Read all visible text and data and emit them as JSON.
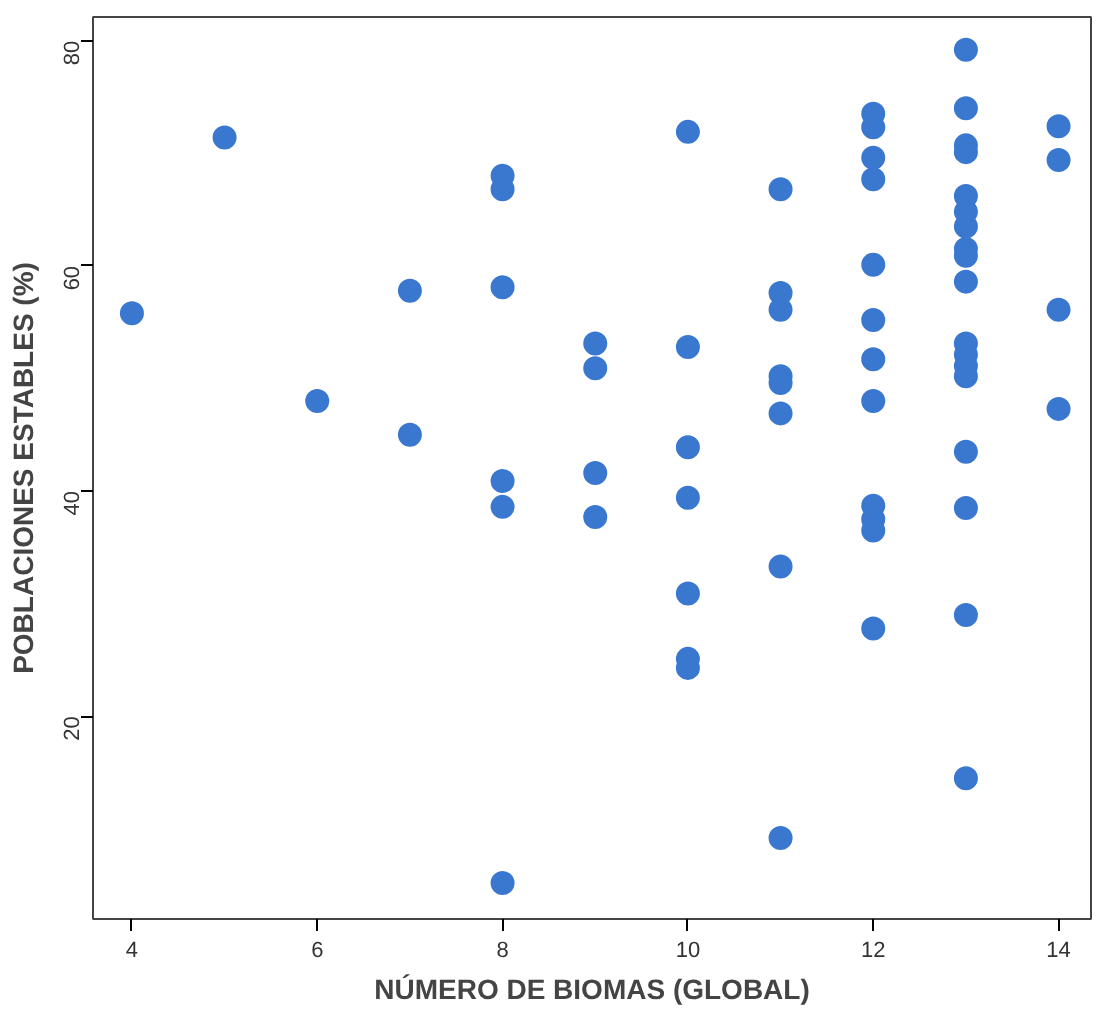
{
  "chart_data": {
    "type": "scatter",
    "xlabel": "NÚMERO DE BIOMAS (GLOBAL)",
    "ylabel": "POBLACIONES ESTABLES (%)",
    "x": [
      4,
      5,
      6,
      7,
      7,
      8,
      8,
      8,
      8,
      8,
      8,
      9,
      9,
      9,
      9,
      10,
      10,
      10,
      10,
      10,
      10,
      10,
      11,
      11,
      11,
      11,
      11,
      11,
      11,
      11,
      12,
      12,
      12,
      12,
      12,
      12,
      12,
      12,
      12,
      12,
      12,
      12,
      13,
      13,
      13,
      13,
      13,
      13,
      13,
      13,
      13,
      13,
      13,
      13,
      13,
      13,
      13,
      13,
      13,
      13,
      14,
      14,
      14,
      14
    ],
    "series": [
      {
        "color": "#3a78d0",
        "values": [
          55.8,
          71.4,
          48.0,
          57.8,
          45.0,
          68.0,
          66.8,
          58.1,
          40.9,
          38.6,
          5.2,
          53.1,
          50.9,
          41.6,
          37.7,
          71.9,
          52.8,
          43.9,
          39.4,
          30.9,
          25.1,
          24.3,
          66.8,
          57.6,
          56.1,
          50.2,
          49.6,
          46.9,
          33.3,
          9.2,
          73.5,
          72.3,
          69.6,
          67.7,
          60.1,
          55.2,
          51.7,
          48.0,
          38.7,
          37.5,
          36.5,
          27.8,
          79.2,
          74.0,
          70.7,
          70.1,
          66.2,
          64.8,
          63.5,
          61.5,
          60.9,
          58.6,
          53.1,
          52.1,
          51.1,
          50.2,
          43.5,
          38.5,
          29.0,
          14.5,
          72.4,
          69.4,
          56.1,
          47.3
        ]
      }
    ],
    "xlim": [
      3.58,
      14.35
    ],
    "ylim": [
      2.0,
      82.1
    ],
    "xticks": [
      4,
      6,
      8,
      10,
      12,
      14
    ],
    "yticks": [
      20,
      40,
      60,
      80
    ],
    "grid": false,
    "marker": "circle"
  }
}
